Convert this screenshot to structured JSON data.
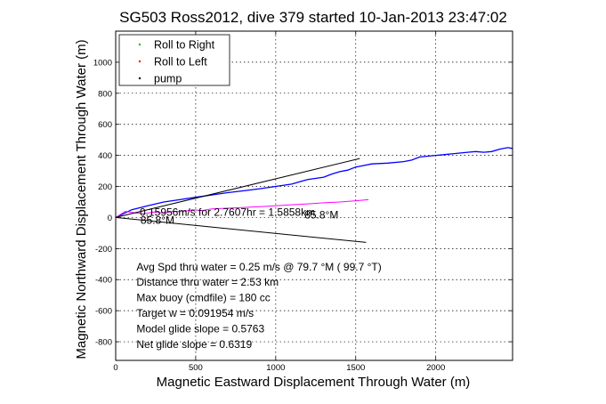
{
  "chart_data": {
    "type": "line",
    "title": "SG503 Ross2012, dive 379 started 10-Jan-2013 23:47:02",
    "xlabel": "Magnetic Eastward Displacement Through Water (m)",
    "ylabel": "Magnetic Northward Displacement Through Water (m)",
    "xlim": [
      0,
      2480
    ],
    "ylim": [
      -920,
      1200
    ],
    "xticks": [
      0,
      500,
      1000,
      1500,
      2000
    ],
    "yticks": [
      -800,
      -600,
      -400,
      -200,
      0,
      200,
      400,
      600,
      800,
      1000
    ],
    "grid": true,
    "legend": {
      "placement": "top-left",
      "entries": [
        {
          "label": "Roll to Right",
          "color": "#00c000",
          "marker": "point"
        },
        {
          "label": "Roll to Left",
          "color": "#ff0000",
          "marker": "point"
        },
        {
          "label": "pump",
          "color": "#000000",
          "marker": "point"
        }
      ]
    },
    "series": [
      {
        "color": "#0000ff",
        "x": [
          0,
          100,
          200,
          300,
          400,
          500,
          600,
          700,
          800,
          900,
          1000,
          1100,
          1150,
          1200,
          1300,
          1350,
          1400,
          1450,
          1500,
          1550,
          1600,
          1700,
          1800,
          1850,
          1900,
          1950,
          2000,
          2050,
          2100,
          2150,
          2200,
          2250,
          2300,
          2350,
          2400,
          2450,
          2480
        ],
        "y": [
          0,
          50,
          75,
          100,
          115,
          130,
          145,
          160,
          172,
          185,
          200,
          215,
          230,
          245,
          260,
          280,
          295,
          305,
          325,
          335,
          345,
          350,
          360,
          370,
          390,
          395,
          400,
          405,
          410,
          415,
          420,
          425,
          420,
          425,
          440,
          450,
          445
        ]
      },
      {
        "color": "#ff00ff",
        "x": [
          0,
          60,
          120,
          180,
          240,
          300,
          360,
          420,
          480,
          540,
          600,
          700,
          800,
          900,
          1000,
          1100,
          1200,
          1300,
          1400,
          1500,
          1580
        ],
        "y": [
          0,
          40,
          30,
          25,
          35,
          28,
          40,
          38,
          50,
          45,
          55,
          60,
          65,
          70,
          75,
          82,
          88,
          95,
          100,
          108,
          115
        ]
      },
      {
        "color": "#000000",
        "x": [
          0,
          1525
        ],
        "y": [
          0,
          380
        ]
      },
      {
        "color": "#000000",
        "x": [
          0,
          1565
        ],
        "y": [
          0,
          -160
        ]
      }
    ],
    "annotations": [
      {
        "text": "0.15956m/s for 2.7607hr = 1.5858km",
        "x": 150,
        "y": 10
      },
      {
        "text": "85.8°M",
        "x": 1180,
        "y": -5
      },
      {
        "text": "85.8°M",
        "x": 155,
        "y": -40
      },
      {
        "text": "Avg Spd thru water =  0.25 m/s @  79.7    °M ( 99.7 °T)",
        "x": 130,
        "y": -340
      },
      {
        "text": "Distance thru water =  2.53 km",
        "x": 130,
        "y": -440
      },
      {
        "text": "Max buoy (cmdfile) = 180 cc",
        "x": 130,
        "y": -540
      },
      {
        "text": "Target w = 0.091954 m/s",
        "x": 130,
        "y": -640
      },
      {
        "text": "Model glide slope = 0.5763",
        "x": 130,
        "y": -740
      },
      {
        "text": "Net glide slope = 0.6319",
        "x": 130,
        "y": -840
      }
    ]
  }
}
